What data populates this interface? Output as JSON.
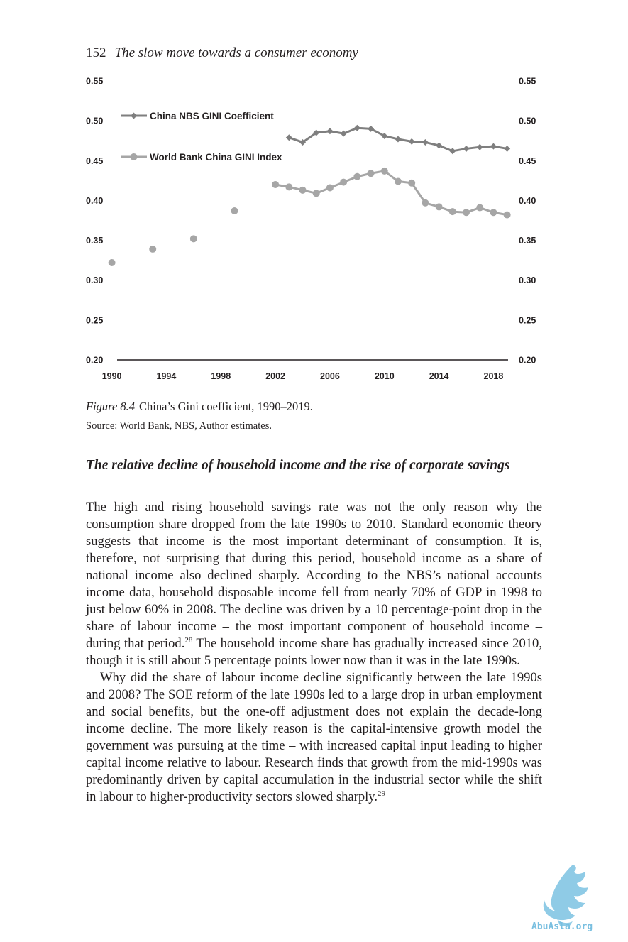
{
  "header": {
    "page_number": "152",
    "running_title": "The slow move towards a consumer economy"
  },
  "figure": {
    "label": "Figure 8.4",
    "caption": "China’s Gini coefficient, 1990–2019.",
    "source": "Source: World Bank, NBS, Author estimates."
  },
  "chart_data": {
    "type": "line",
    "x_ticks": [
      "1990",
      "1994",
      "1998",
      "2002",
      "2006",
      "2010",
      "2014",
      "2018"
    ],
    "y_ticks_left": [
      "0.55",
      "0.50",
      "0.45",
      "0.40",
      "0.35",
      "0.30",
      "0.25",
      "0.20"
    ],
    "y_ticks_right": [
      "0.55",
      "0.50",
      "0.45",
      "0.40",
      "0.35",
      "0.30",
      "0.25",
      "0.20"
    ],
    "xlim": [
      1989.5,
      2019.8
    ],
    "ylim": [
      0.2,
      0.55
    ],
    "grid": false,
    "legend_position": "top-left",
    "series": [
      {
        "name": "China NBS GINI Coefficient",
        "color": "#7f7f7f",
        "marker": "diamond",
        "connected": true,
        "points": [
          [
            2003,
            0.479
          ],
          [
            2004,
            0.473
          ],
          [
            2005,
            0.485
          ],
          [
            2006,
            0.487
          ],
          [
            2007,
            0.484
          ],
          [
            2008,
            0.491
          ],
          [
            2009,
            0.49
          ],
          [
            2010,
            0.481
          ],
          [
            2011,
            0.477
          ],
          [
            2012,
            0.474
          ],
          [
            2013,
            0.473
          ],
          [
            2014,
            0.469
          ],
          [
            2015,
            0.462
          ],
          [
            2016,
            0.465
          ],
          [
            2017,
            0.467
          ],
          [
            2018,
            0.468
          ],
          [
            2019,
            0.465
          ]
        ]
      },
      {
        "name": "World Bank China GINI Index",
        "color": "#a6a6a6",
        "marker": "circle",
        "connected": true,
        "points": [
          [
            1990,
            0.322
          ],
          [
            1993,
            0.339
          ],
          [
            1996,
            0.352
          ],
          [
            1999,
            0.387
          ],
          [
            2002,
            0.42
          ],
          [
            2003,
            0.417
          ],
          [
            2004,
            0.413
          ],
          [
            2005,
            0.409
          ],
          [
            2006,
            0.416
          ],
          [
            2007,
            0.423
          ],
          [
            2008,
            0.43
          ],
          [
            2009,
            0.434
          ],
          [
            2010,
            0.437
          ],
          [
            2011,
            0.424
          ],
          [
            2012,
            0.422
          ],
          [
            2013,
            0.397
          ],
          [
            2014,
            0.392
          ],
          [
            2015,
            0.386
          ],
          [
            2016,
            0.385
          ],
          [
            2017,
            0.391
          ],
          [
            2018,
            0.385
          ],
          [
            2019,
            0.382
          ]
        ]
      }
    ]
  },
  "section": {
    "heading": "The relative decline of household income and the rise of corporate savings"
  },
  "body": {
    "p1_a": "The high and rising household savings rate was not the only reason why the consumption share dropped from the late 1990s to 2010. Standard economic theory suggests that income is the most important determinant of consumption. It is, therefore, not surprising that during this period, household income as a share of national income also declined sharply. According to the NBS’s national accounts income data, household disposable income fell from nearly 70% of GDP in 1998 to just below 60% in 2008. The decline was driven by a 10 percentage-point drop in the share of labour income – the most important component of household income – during that period.",
    "fn28": "28",
    "p1_b": " The household income share has gradually increased since 2010, though it is still about 5 percentage points lower now than it was in the late 1990s.",
    "p2_a": "Why did the share of labour income decline significantly between the late 1990s and 2008? The SOE reform of the late 1990s led to a large drop in urban employment and social benefits, but the one-off adjustment does not explain the decade-long income decline. The more likely reason is the capital-intensive growth model the government was pursuing at the time – with increased capital input leading to higher capital income relative to labour. Research finds that growth from the mid-1990s was predominantly driven by capital accumulation in the industrial sector while the shift in labour to higher-productivity sectors slowed sharply.",
    "fn29": "29"
  },
  "watermark": {
    "text": "AbuAsla.org",
    "color": "#79bfe0"
  }
}
